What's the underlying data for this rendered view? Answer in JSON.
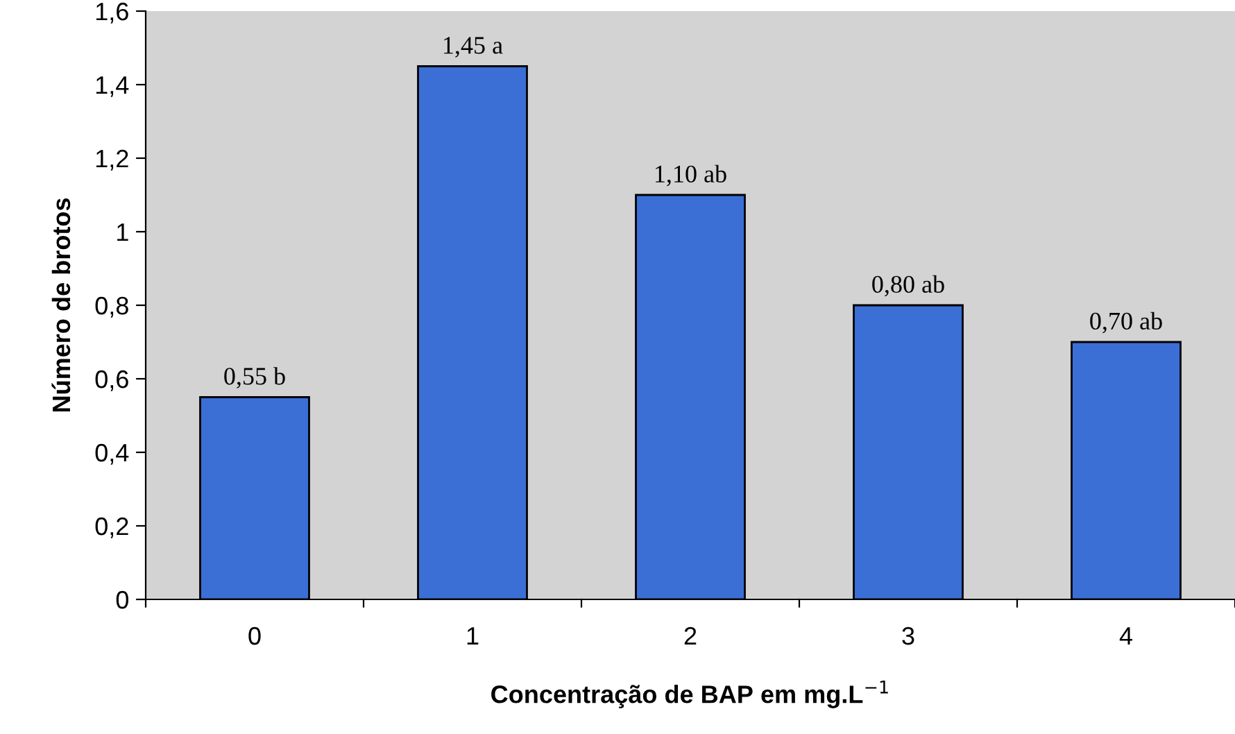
{
  "chart_data": {
    "type": "bar",
    "xlabel": "Concentração de BAP em mg.L$^{−1}$",
    "ylabel": "Número de brotos",
    "categories": [
      "0",
      "1",
      "2",
      "3",
      "4"
    ],
    "values": [
      0.55,
      1.45,
      1.1,
      0.8,
      0.7
    ],
    "value_labels": [
      "0,55 b",
      "1,45 a",
      "1,10 ab",
      "0,80 ab",
      "0,70 ab"
    ],
    "color": "#3b6fd6",
    "ylim": [
      0,
      1.6
    ],
    "yticks": [
      0,
      {
        "value": 0.2,
        "label": "0,2"
      },
      {
        "value": 0.4,
        "label": "0,4"
      },
      {
        "value": 0.6,
        "label": "0,6"
      },
      {
        "value": 0.8,
        "label": "0,8"
      },
      1,
      {
        "value": 1.2,
        "label": "1,2"
      },
      {
        "value": 1.4,
        "label": "1,4"
      },
      {
        "value": 1.6,
        "label": "1,6"
      }
    ],
    "grid": false,
    "legend": false
  }
}
